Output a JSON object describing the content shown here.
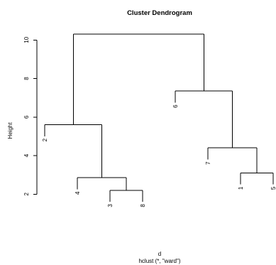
{
  "chart_data": {
    "type": "dendrogram",
    "title": "Cluster Dendrogram",
    "xlabel": "d",
    "sublabel": "hclust (*, \"ward\")",
    "ylabel": "Height",
    "ylim": [
      1.2,
      10.6
    ],
    "yticks": [
      2,
      4,
      6,
      8,
      10
    ],
    "leaf_order": [
      "2",
      "4",
      "3",
      "8",
      "6",
      "7",
      "1",
      "5"
    ],
    "leaves": [
      {
        "label": "2",
        "height": 5.6
      },
      {
        "label": "4",
        "height": 2.85
      },
      {
        "label": "3",
        "height": 2.2
      },
      {
        "label": "8",
        "height": 2.2
      },
      {
        "label": "6",
        "height": 7.35
      },
      {
        "label": "7",
        "height": 4.4
      },
      {
        "label": "1",
        "height": 3.1
      },
      {
        "label": "5",
        "height": 3.1
      }
    ],
    "merges": [
      {
        "id": "m38",
        "left": "3",
        "right": "8",
        "height": 2.2
      },
      {
        "id": "m15",
        "left": "1",
        "right": "5",
        "height": 3.1
      },
      {
        "id": "m438",
        "left": "4",
        "right": "m38",
        "height": 2.85
      },
      {
        "id": "m715",
        "left": "7",
        "right": "m15",
        "height": 4.4
      },
      {
        "id": "m2438",
        "left": "2",
        "right": "m438",
        "height": 5.6
      },
      {
        "id": "m6715",
        "left": "6",
        "right": "m715",
        "height": 7.35
      },
      {
        "id": "root",
        "left": "m2438",
        "right": "m6715",
        "height": 10.3
      }
    ]
  }
}
